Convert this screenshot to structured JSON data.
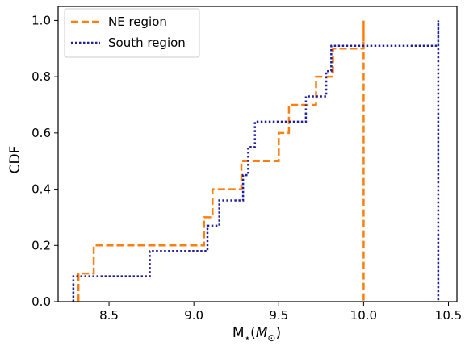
{
  "chart_data": {
    "type": "line",
    "subtype": "step-cdf",
    "xlabel_prefix": "M",
    "xlabel_sub": "⋆",
    "xlabel_unit_open": "(",
    "xlabel_unit": "M",
    "xlabel_unit_sub": "⊙",
    "xlabel_unit_close": ")",
    "ylabel": "CDF",
    "xlim": [
      8.2,
      10.55
    ],
    "ylim": [
      0.0,
      1.05
    ],
    "xticks": [
      8.5,
      9.0,
      9.5,
      10.0,
      10.5
    ],
    "xtick_labels": [
      "8.5",
      "9.0",
      "9.5",
      "10.0",
      "10.5"
    ],
    "yticks": [
      0.0,
      0.2,
      0.4,
      0.6,
      0.8,
      1.0
    ],
    "ytick_labels": [
      "0.0",
      "0.2",
      "0.4",
      "0.6",
      "0.8",
      "1.0"
    ],
    "grid": false,
    "legend_position": "top-left",
    "series": [
      {
        "name": "NE region",
        "color": "#ff7f0e",
        "linestyle": "dashed",
        "points": [
          [
            8.32,
            0.0
          ],
          [
            8.32,
            0.1
          ],
          [
            8.41,
            0.1
          ],
          [
            8.41,
            0.2
          ],
          [
            9.06,
            0.2
          ],
          [
            9.06,
            0.3
          ],
          [
            9.11,
            0.3
          ],
          [
            9.11,
            0.4
          ],
          [
            9.28,
            0.4
          ],
          [
            9.28,
            0.5
          ],
          [
            9.5,
            0.5
          ],
          [
            9.5,
            0.6
          ],
          [
            9.56,
            0.6
          ],
          [
            9.56,
            0.7
          ],
          [
            9.72,
            0.7
          ],
          [
            9.72,
            0.8
          ],
          [
            9.82,
            0.8
          ],
          [
            9.82,
            0.9
          ],
          [
            10.0,
            0.9
          ],
          [
            10.0,
            1.0
          ],
          [
            10.0,
            0.0
          ]
        ]
      },
      {
        "name": "South region",
        "color": "#1f1f9f",
        "linestyle": "dotted",
        "points": [
          [
            8.29,
            0.0
          ],
          [
            8.29,
            0.09
          ],
          [
            8.74,
            0.09
          ],
          [
            8.74,
            0.18
          ],
          [
            9.08,
            0.18
          ],
          [
            9.08,
            0.27
          ],
          [
            9.15,
            0.27
          ],
          [
            9.15,
            0.36
          ],
          [
            9.29,
            0.36
          ],
          [
            9.29,
            0.45
          ],
          [
            9.32,
            0.45
          ],
          [
            9.32,
            0.55
          ],
          [
            9.36,
            0.55
          ],
          [
            9.36,
            0.64
          ],
          [
            9.66,
            0.64
          ],
          [
            9.66,
            0.73
          ],
          [
            9.78,
            0.73
          ],
          [
            9.78,
            0.82
          ],
          [
            9.81,
            0.82
          ],
          [
            9.81,
            0.91
          ],
          [
            10.44,
            0.91
          ],
          [
            10.44,
            1.0
          ],
          [
            10.44,
            0.0
          ]
        ]
      }
    ]
  }
}
